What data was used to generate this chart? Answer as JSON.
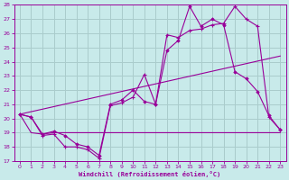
{
  "xlabel": "Windchill (Refroidissement éolien,°C)",
  "background_color": "#c8eaea",
  "grid_color": "#aacccc",
  "line_color": "#990099",
  "xlim": [
    -0.5,
    23.5
  ],
  "ylim": [
    17,
    28
  ],
  "xticks": [
    0,
    1,
    2,
    3,
    4,
    5,
    6,
    7,
    8,
    9,
    10,
    11,
    12,
    13,
    14,
    15,
    16,
    17,
    18,
    19,
    20,
    21,
    22,
    23
  ],
  "yticks": [
    17,
    18,
    19,
    20,
    21,
    22,
    23,
    24,
    25,
    26,
    27,
    28
  ],
  "line1_x": [
    0,
    1,
    2,
    3,
    4,
    5,
    6,
    7,
    8,
    9,
    10,
    11,
    12,
    13,
    14,
    15,
    16,
    17,
    18,
    19,
    20,
    21,
    22,
    23
  ],
  "line1_y": [
    20.3,
    20.1,
    18.8,
    18.9,
    18.0,
    18.0,
    17.8,
    17.2,
    20.9,
    21.1,
    21.5,
    23.1,
    21.0,
    25.9,
    25.7,
    26.2,
    26.3,
    26.6,
    26.7,
    27.9,
    27.0,
    26.5,
    20.1,
    19.2
  ],
  "line2_x": [
    0,
    1,
    2,
    3,
    4,
    5,
    6,
    7,
    8,
    9,
    10,
    11,
    12,
    13,
    14,
    15,
    16,
    17,
    18,
    19,
    20,
    21,
    22,
    23
  ],
  "line2_y": [
    20.3,
    20.1,
    18.9,
    19.1,
    18.8,
    18.2,
    18.0,
    17.4,
    21.0,
    21.3,
    22.0,
    21.2,
    21.0,
    24.8,
    25.5,
    27.9,
    26.5,
    27.0,
    26.6,
    23.3,
    22.8,
    21.9,
    20.2,
    19.2
  ],
  "line3_x": [
    0,
    1,
    2,
    3,
    12,
    23
  ],
  "line3_y": [
    20.3,
    19.0,
    18.9,
    19.0,
    19.0,
    19.0
  ],
  "line4_x": [
    0,
    23
  ],
  "line4_y": [
    20.3,
    24.4
  ]
}
